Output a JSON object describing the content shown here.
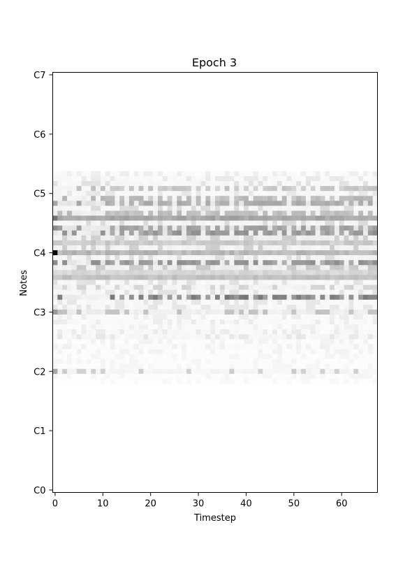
{
  "chart_data": {
    "type": "heatmap",
    "title": "Epoch 3",
    "xlabel": "Timestep",
    "ylabel": "Notes",
    "colormap": "grayscale (white = 0, black = 1)",
    "x_range": [
      0,
      67
    ],
    "y_range_midi": [
      12,
      96
    ],
    "x_ticks": [
      0,
      10,
      20,
      30,
      40,
      50,
      60
    ],
    "x_tick_labels": [
      "0",
      "10",
      "20",
      "30",
      "40",
      "50",
      "60"
    ],
    "y_ticks_midi": [
      12,
      24,
      36,
      48,
      60,
      72,
      84
    ],
    "y_tick_labels": [
      "C0",
      "C1",
      "C2",
      "C3",
      "C4",
      "C5",
      "C6",
      "C7"
    ],
    "y_tick_midi_all": [
      12,
      24,
      36,
      48,
      60,
      72,
      84,
      96
    ],
    "grid": false,
    "rows": [
      {
        "midi": 76,
        "base": 0.03,
        "peak": 0.07,
        "pattern": "sparse"
      },
      {
        "midi": 75,
        "base": 0.04,
        "peak": 0.09,
        "pattern": "sparse"
      },
      {
        "midi": 74,
        "base": 0.05,
        "peak": 0.12,
        "pattern": "sparse"
      },
      {
        "midi": 73,
        "base": 0.08,
        "peak": 0.25,
        "pattern": "pulse"
      },
      {
        "midi": 72,
        "base": 0.05,
        "peak": 0.1,
        "pattern": "sparse"
      },
      {
        "midi": 71,
        "base": 0.1,
        "peak": 0.3,
        "pattern": "pulse"
      },
      {
        "midi": 70,
        "base": 0.18,
        "peak": 0.35,
        "pattern": "pulse"
      },
      {
        "midi": 69,
        "base": 0.06,
        "peak": 0.15,
        "pattern": "sparse"
      },
      {
        "midi": 68,
        "base": 0.12,
        "peak": 0.28,
        "pattern": "pulse"
      },
      {
        "midi": 67,
        "base": 0.3,
        "peak": 0.45,
        "pattern": "steady"
      },
      {
        "midi": 66,
        "base": 0.06,
        "peak": 0.15,
        "pattern": "sparse"
      },
      {
        "midi": 65,
        "base": 0.2,
        "peak": 0.4,
        "pattern": "pulse"
      },
      {
        "midi": 64,
        "base": 0.18,
        "peak": 0.45,
        "pattern": "pulse"
      },
      {
        "midi": 63,
        "base": 0.1,
        "peak": 0.2,
        "pattern": "sparse"
      },
      {
        "midi": 62,
        "base": 0.15,
        "peak": 0.3,
        "pattern": "steady"
      },
      {
        "midi": 61,
        "base": 0.08,
        "peak": 0.2,
        "pattern": "sparse"
      },
      {
        "midi": 60,
        "base": 0.22,
        "peak": 0.4,
        "pattern": "steady"
      },
      {
        "midi": 59,
        "base": 0.06,
        "peak": 0.14,
        "pattern": "sparse"
      },
      {
        "midi": 58,
        "base": 0.15,
        "peak": 0.45,
        "pattern": "pulse"
      },
      {
        "midi": 57,
        "base": 0.1,
        "peak": 0.22,
        "pattern": "sparse"
      },
      {
        "midi": 56,
        "base": 0.12,
        "peak": 0.25,
        "pattern": "steady"
      },
      {
        "midi": 55,
        "base": 0.2,
        "peak": 0.32,
        "pattern": "steady"
      },
      {
        "midi": 54,
        "base": 0.05,
        "peak": 0.12,
        "pattern": "sparse"
      },
      {
        "midi": 53,
        "base": 0.08,
        "peak": 0.18,
        "pattern": "sparse"
      },
      {
        "midi": 52,
        "base": 0.05,
        "peak": 0.12,
        "pattern": "sparse"
      },
      {
        "midi": 51,
        "base": 0.12,
        "peak": 0.55,
        "pattern": "pulse"
      },
      {
        "midi": 50,
        "base": 0.04,
        "peak": 0.1,
        "pattern": "sparse"
      },
      {
        "midi": 49,
        "base": 0.05,
        "peak": 0.1,
        "pattern": "sparse"
      },
      {
        "midi": 48,
        "base": 0.1,
        "peak": 0.25,
        "pattern": "sparse"
      },
      {
        "midi": 47,
        "base": 0.03,
        "peak": 0.07,
        "pattern": "sparse"
      },
      {
        "midi": 46,
        "base": 0.04,
        "peak": 0.08,
        "pattern": "sparse"
      },
      {
        "midi": 45,
        "base": 0.03,
        "peak": 0.06,
        "pattern": "sparse"
      },
      {
        "midi": 44,
        "base": 0.04,
        "peak": 0.08,
        "pattern": "sparse"
      },
      {
        "midi": 43,
        "base": 0.05,
        "peak": 0.1,
        "pattern": "sparse"
      },
      {
        "midi": 42,
        "base": 0.02,
        "peak": 0.05,
        "pattern": "sparse"
      },
      {
        "midi": 41,
        "base": 0.03,
        "peak": 0.06,
        "pattern": "sparse"
      },
      {
        "midi": 40,
        "base": 0.02,
        "peak": 0.05,
        "pattern": "sparse"
      },
      {
        "midi": 39,
        "base": 0.02,
        "peak": 0.04,
        "pattern": "sparse"
      },
      {
        "midi": 38,
        "base": 0.02,
        "peak": 0.04,
        "pattern": "sparse"
      },
      {
        "midi": 37,
        "base": 0.02,
        "peak": 0.04,
        "pattern": "sparse"
      },
      {
        "midi": 36,
        "base": 0.06,
        "peak": 0.2,
        "pattern": "sparse"
      },
      {
        "midi": 35,
        "base": 0.02,
        "peak": 0.04,
        "pattern": "sparse"
      },
      {
        "midi": 34,
        "base": 0.01,
        "peak": 0.03,
        "pattern": "sparse"
      }
    ],
    "highlight_cells": [
      {
        "t": 0,
        "midi": 60,
        "value": 1.0
      },
      {
        "t": 0,
        "midi": 67,
        "value": 0.55
      },
      {
        "t": 0,
        "midi": 65,
        "value": 0.45
      },
      {
        "t": 0,
        "midi": 58,
        "value": 0.45
      },
      {
        "t": 0,
        "midi": 48,
        "value": 0.4
      },
      {
        "t": 0,
        "midi": 36,
        "value": 0.35
      }
    ]
  }
}
